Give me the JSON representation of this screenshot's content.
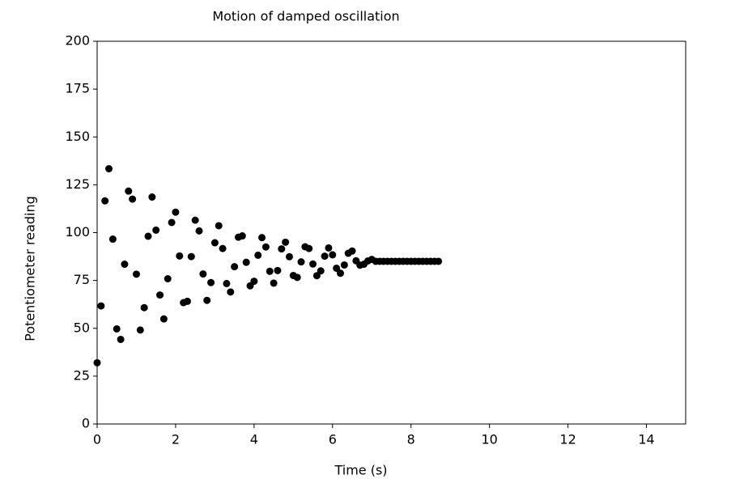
{
  "chart_data": {
    "type": "scatter",
    "title": "Motion of damped oscillation",
    "x_label": "Time (s)",
    "y_label": "Potentiometer reading",
    "color": "#000000",
    "x": [
      0,
      0.1,
      0.2,
      0.3,
      0.4,
      0.5,
      0.6,
      0.7,
      0.8,
      0.9,
      1.0,
      1.1,
      1.2,
      1.3,
      1.4,
      1.5,
      1.6,
      1.7,
      1.8,
      1.9,
      2.0,
      2.1,
      2.2,
      2.3,
      2.4,
      2.5,
      2.6,
      2.7,
      2.8,
      2.9,
      3.0,
      3.1,
      3.2,
      3.3,
      3.4,
      3.5,
      3.6,
      3.7,
      3.8,
      3.9,
      4.0,
      4.1,
      4.2,
      4.3,
      4.4,
      4.5,
      4.6,
      4.7,
      4.8,
      4.9,
      5.0,
      5.1,
      5.2,
      5.3,
      5.4,
      5.5,
      5.6,
      5.7,
      5.8,
      5.9,
      6.0,
      6.1,
      6.2,
      6.3,
      6.4,
      6.5,
      6.6,
      6.7,
      6.8,
      6.9,
      7.0,
      7.1,
      7.2,
      7.3,
      7.4,
      7.5,
      7.6,
      7.7,
      7.8,
      7.9,
      8.0,
      8.1,
      8.2,
      8.3,
      8.4,
      8.5,
      8.6,
      8.7
    ],
    "values": [
      32,
      61.7,
      116.6,
      133.4,
      96.6,
      49.7,
      44.2,
      83.5,
      121.7,
      117.5,
      78.3,
      49.1,
      60.8,
      98.1,
      118.6,
      101.3,
      67.4,
      54.9,
      75.9,
      105.3,
      110.7,
      87.8,
      63.4,
      64.1,
      87.5,
      106.5,
      100.9,
      78.4,
      64.6,
      73.9,
      94.7,
      103.6,
      91.7,
      73.4,
      69.0,
      82.2,
      97.6,
      98.3,
      84.5,
      72.2,
      74.6,
      88.2,
      97.4,
      92.5,
      79.8,
      73.6,
      80.2,
      91.5,
      95.0,
      87.4,
      77.6,
      76.6,
      84.7,
      92.6,
      91.7,
      83.6,
      77.5,
      80.0,
      87.7,
      92.0,
      88.4,
      81.4,
      78.8,
      83.1,
      89.2,
      90.4,
      85.3,
      83,
      83.5,
      85.2,
      86,
      85,
      85,
      85,
      85,
      85,
      85,
      85,
      85,
      85,
      85,
      85,
      85,
      85,
      85,
      85,
      85,
      85
    ],
    "xlim": [
      0,
      15
    ],
    "xticks": [
      0,
      2,
      4,
      6,
      8,
      10,
      12,
      14
    ],
    "ylim": [
      0,
      200
    ],
    "yticks": [
      0,
      25,
      50,
      75,
      100,
      125,
      150,
      175,
      200
    ]
  }
}
